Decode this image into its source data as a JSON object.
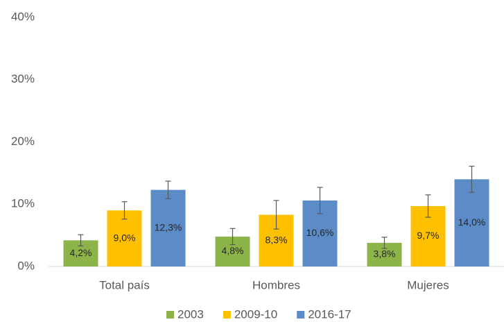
{
  "chart_data": {
    "type": "bar",
    "categories": [
      "Total país",
      "Hombres",
      "Mujeres"
    ],
    "series": [
      {
        "name": "2003",
        "color": "#8db449",
        "values": [
          4.2,
          4.8,
          3.8
        ],
        "errors": [
          0.9,
          1.3,
          0.9
        ],
        "value_labels": [
          "4,2%",
          "4,8%",
          "3,8%"
        ]
      },
      {
        "name": "2009-10",
        "color": "#ffc000",
        "values": [
          9.0,
          8.3,
          9.7
        ],
        "errors": [
          1.4,
          2.3,
          1.8
        ],
        "value_labels": [
          "9,0%",
          "8,3%",
          "9,7%"
        ]
      },
      {
        "name": "2016-17",
        "color": "#5b8cc8",
        "values": [
          12.3,
          10.6,
          14.0
        ],
        "errors": [
          1.4,
          2.1,
          2.1
        ],
        "value_labels": [
          "12,3%",
          "10,6%",
          "14,0%"
        ]
      }
    ],
    "ylim": [
      0,
      40
    ],
    "yticks": [
      {
        "value": 0,
        "label": "0%"
      },
      {
        "value": 10,
        "label": "10%"
      },
      {
        "value": 20,
        "label": "20%"
      },
      {
        "value": 30,
        "label": "30%"
      },
      {
        "value": 40,
        "label": "40%"
      }
    ],
    "grid": false,
    "legend": "bottom"
  }
}
